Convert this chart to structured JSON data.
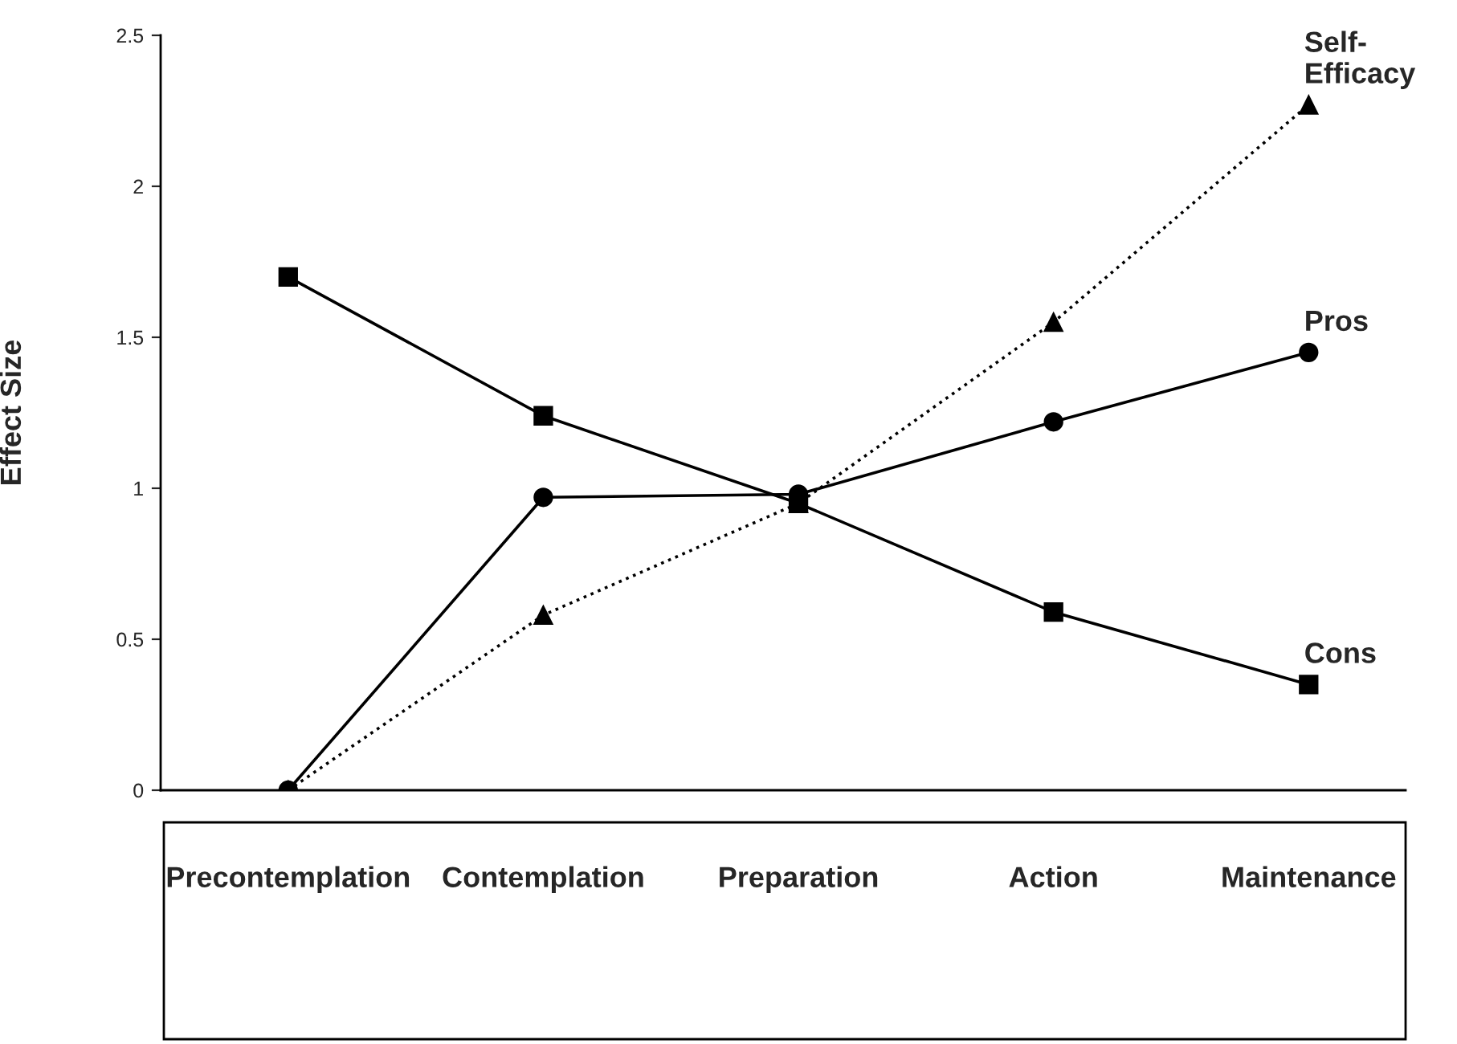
{
  "chart_data": {
    "type": "line",
    "ylabel": "Effect Size",
    "categories": [
      "Precontemplation",
      "Contemplation",
      "Preparation",
      "Action",
      "Maintenance"
    ],
    "series": [
      {
        "name": "Cons",
        "color": "#000000",
        "marker": "square",
        "line_style": "solid",
        "values": [
          1.7,
          1.24,
          0.95,
          0.59,
          0.35
        ]
      },
      {
        "name": "Pros",
        "color": "#000000",
        "marker": "circle",
        "line_style": "solid",
        "values": [
          0,
          0.97,
          0.98,
          1.22,
          1.45
        ]
      },
      {
        "name": "Self-\nEfficacy",
        "color": "#000000",
        "marker": "triangle",
        "line_style": "dotted",
        "values": [
          0,
          0.58,
          0.95,
          1.55,
          2.27
        ]
      }
    ],
    "ylim": [
      0,
      2.5
    ],
    "yticks": [
      0,
      0.5,
      1,
      1.5,
      2,
      2.5
    ],
    "grid": false,
    "legend": false
  }
}
